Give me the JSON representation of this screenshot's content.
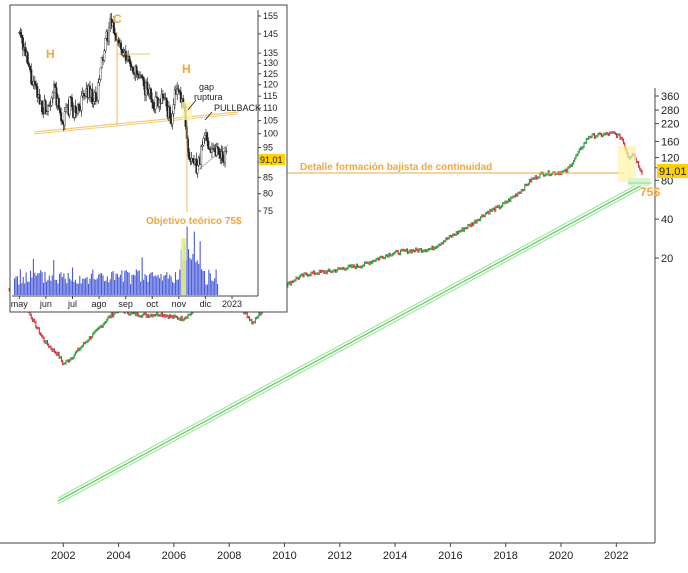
{
  "chart_data": [
    {
      "type": "line",
      "scale": "log",
      "x_ticks": [
        "2002",
        "2004",
        "2006",
        "2008",
        "2010",
        "2012",
        "2014",
        "2016",
        "2018",
        "2020",
        "2022"
      ],
      "y_ticks": [
        20,
        40,
        80,
        100,
        120,
        160,
        220,
        280,
        360
      ],
      "y_tick_labels": [
        "20",
        "40",
        "80",
        "100",
        "120",
        "160",
        "220",
        "280",
        "360"
      ],
      "price_badge": "91,01",
      "target_label": "75$",
      "detail_label": "Detalle formación bajista de continuidad",
      "x": [
        2000.0,
        2000.3,
        2000.7,
        2001.0,
        2001.3,
        2001.6,
        2001.8,
        2002.0,
        2002.3,
        2002.6,
        2002.9,
        2003.2,
        2003.6,
        2004.0,
        2004.5,
        2005.0,
        2005.5,
        2005.9,
        2006.3,
        2006.7,
        2007.0,
        2007.4,
        2007.8,
        2008.2,
        2008.6,
        2008.85,
        2009.1,
        2009.5,
        2010.0,
        2010.4,
        2010.8,
        2011.3,
        2011.7,
        2012.2,
        2012.8,
        2013.3,
        2013.8,
        2014.3,
        2014.8,
        2015.3,
        2015.8,
        2016.2,
        2016.8,
        2017.3,
        2017.8,
        2018.2,
        2018.6,
        2018.9,
        2019.3,
        2019.9,
        2020.2,
        2020.6,
        2021.0,
        2021.5,
        2021.9,
        2022.2,
        2022.45,
        2022.6,
        2022.8,
        2022.95
      ],
      "y": [
        11.5,
        9.5,
        8.0,
        6.0,
        4.6,
        3.9,
        3.6,
        3.0,
        3.4,
        4.0,
        4.7,
        5.4,
        6.8,
        8.0,
        7.4,
        7.2,
        7.4,
        7.0,
        6.8,
        7.6,
        9.0,
        10.2,
        9.8,
        8.8,
        7.5,
        6.2,
        7.4,
        9.0,
        12.0,
        13.8,
        15.0,
        15.5,
        15.8,
        16.8,
        17.5,
        19.5,
        21.5,
        22.5,
        23.0,
        23.5,
        27.5,
        31.0,
        37.0,
        45.0,
        50.0,
        58.0,
        68.0,
        80.0,
        90.0,
        92.0,
        94.0,
        128.0,
        175.0,
        180.0,
        185.0,
        170.0,
        120.0,
        130.0,
        105.0,
        91.0
      ]
    },
    {
      "type": "candlestick",
      "scale": "log",
      "x_ticks": [
        "may",
        "jun",
        "jul",
        "ago",
        "sep",
        "oct",
        "nov",
        "dic",
        "2023"
      ],
      "y_ticks": [
        75,
        80,
        85,
        90,
        95,
        100,
        105,
        110,
        115,
        120,
        125,
        130,
        135,
        145,
        155
      ],
      "y_tick_labels": [
        "75",
        "80",
        "85",
        "90",
        "95",
        "100",
        "105",
        "110",
        "115",
        "120",
        "125",
        "130",
        "135",
        "145",
        "155"
      ],
      "price_badge": "91,01",
      "annotations": [
        "H",
        "C",
        "H",
        "gap",
        "ruptura",
        "PULLBACK",
        "Objetivo teórico 75$"
      ],
      "x": [
        0.0,
        0.2,
        0.5,
        0.8,
        1.0,
        1.3,
        1.6,
        1.9,
        2.1,
        2.4,
        2.6,
        2.9,
        3.1,
        3.4,
        3.6,
        3.9,
        4.2,
        4.5,
        4.8,
        5.1,
        5.4,
        5.7,
        5.9,
        6.2,
        6.4,
        6.7,
        7.0,
        7.2,
        7.5,
        7.8
      ],
      "y": [
        150.0,
        135.0,
        120.0,
        112.0,
        110.0,
        118.0,
        104.0,
        112.0,
        108.0,
        114.0,
        118.0,
        112.0,
        130.0,
        150.0,
        146.0,
        133.0,
        130.0,
        122.0,
        118.0,
        112.0,
        116.0,
        105.0,
        118.0,
        110.0,
        90.0,
        88.0,
        100.0,
        95.0,
        94.0,
        91.0
      ]
    }
  ]
}
